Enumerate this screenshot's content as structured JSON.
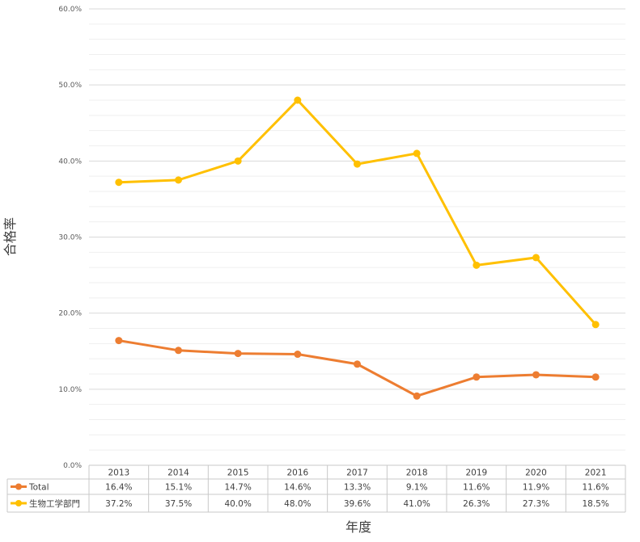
{
  "chart_data": {
    "type": "line",
    "title": "",
    "xlabel": "年度",
    "ylabel": "合格率",
    "ylim": [
      0,
      60
    ],
    "y_ticks": [
      "0.0%",
      "10.0%",
      "20.0%",
      "30.0%",
      "40.0%",
      "50.0%",
      "60.0%"
    ],
    "grid": true,
    "legend": "data-table",
    "categories": [
      "2013",
      "2014",
      "2015",
      "2016",
      "2017",
      "2018",
      "2019",
      "2020",
      "2021"
    ],
    "series": [
      {
        "name": "Total",
        "color": "#ED7D31",
        "values": [
          16.4,
          15.1,
          14.7,
          14.6,
          13.3,
          9.1,
          11.6,
          11.9,
          11.6
        ],
        "labels": [
          "16.4%",
          "15.1%",
          "14.7%",
          "14.6%",
          "13.3%",
          "9.1%",
          "11.6%",
          "11.9%",
          "11.6%"
        ]
      },
      {
        "name": "生物工学部門",
        "color": "#FFC000",
        "values": [
          37.2,
          37.5,
          40.0,
          48.0,
          39.6,
          41.0,
          26.3,
          27.3,
          18.5
        ],
        "labels": [
          "37.2%",
          "37.5%",
          "40.0%",
          "48.0%",
          "39.6%",
          "41.0%",
          "26.3%",
          "27.3%",
          "18.5%"
        ]
      }
    ]
  }
}
